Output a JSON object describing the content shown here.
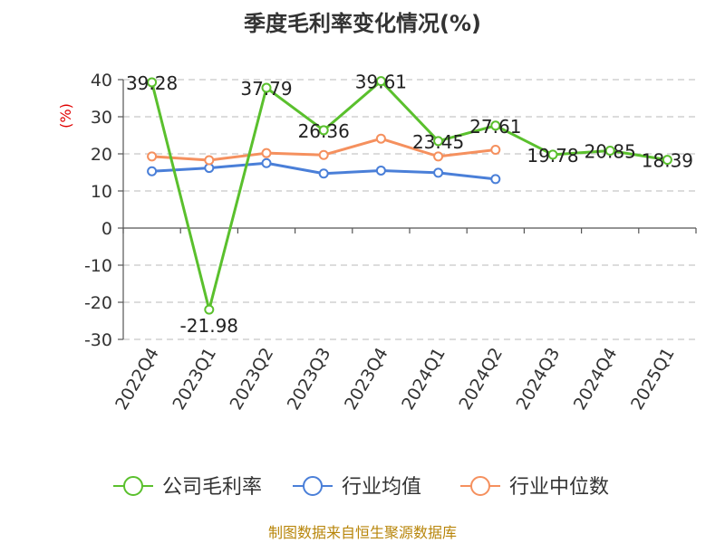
{
  "chart_data": {
    "type": "line",
    "title": "季度毛利率变化情况(%)",
    "ylabel": "(%)",
    "ylim": [
      -30,
      40
    ],
    "yticks": [
      40,
      30,
      20,
      10,
      0,
      -10,
      -20,
      -30
    ],
    "grid": true,
    "categories": [
      "2022Q4",
      "2023Q1",
      "2023Q2",
      "2023Q3",
      "2023Q4",
      "2024Q1",
      "2024Q2",
      "2024Q3",
      "2024Q4",
      "2025Q1"
    ],
    "series": [
      {
        "name": "公司毛利率",
        "color": "#5ac02d",
        "values": [
          39.28,
          -21.98,
          37.79,
          26.36,
          39.61,
          23.45,
          27.61,
          19.78,
          20.85,
          18.39
        ],
        "labels": [
          "39.28",
          "-21.98",
          "37.79",
          "26.36",
          "39.61",
          "23.45",
          "27.61",
          "19.78",
          "20.85",
          "18.39"
        ]
      },
      {
        "name": "行业均值",
        "color": "#4a7fd8",
        "values": [
          15.3,
          16.2,
          17.5,
          14.7,
          15.5,
          14.9,
          13.2,
          null,
          null,
          null
        ]
      },
      {
        "name": "行业中位数",
        "color": "#f5905e",
        "values": [
          19.3,
          18.3,
          20.2,
          19.7,
          24.1,
          19.3,
          21.1,
          null,
          null,
          null
        ]
      }
    ],
    "legend_position": "bottom"
  },
  "source": "制图数据来自恒生聚源数据库"
}
